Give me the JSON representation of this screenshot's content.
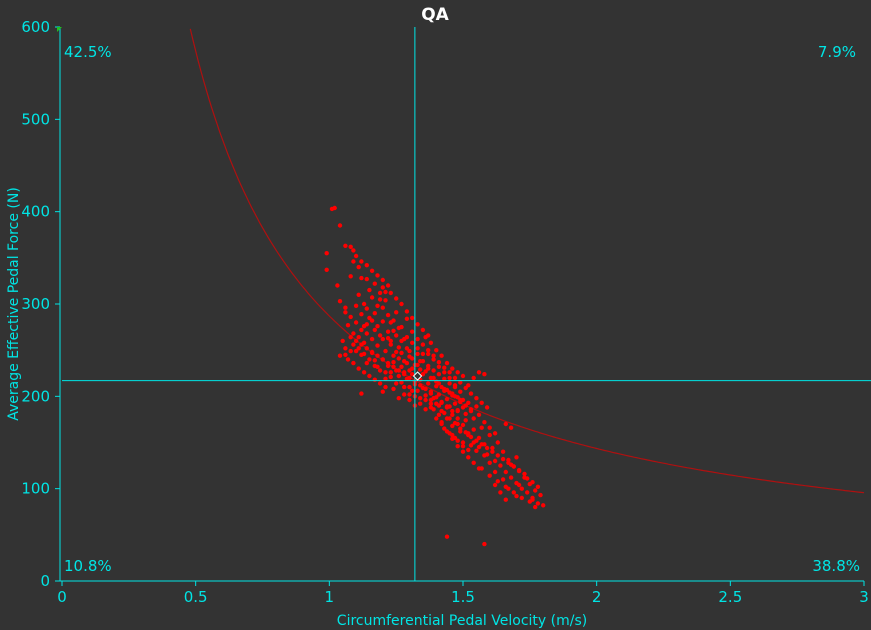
{
  "chart_data": {
    "type": "scatter",
    "title": "QA",
    "xlabel": "Circumferential Pedal Velocity (m/s)",
    "ylabel": "Average Effective Pedal Force (N)",
    "xlim": [
      0,
      3
    ],
    "ylim": [
      0,
      600
    ],
    "x_ticks": [
      "0",
      "0.5",
      "1",
      "1.5",
      "2",
      "2.5",
      "3"
    ],
    "y_ticks": [
      "0",
      "100",
      "200",
      "300",
      "400",
      "500",
      "600"
    ],
    "grid": false,
    "crosshair": {
      "x": 1.32,
      "y": 217
    },
    "mean_marker": {
      "x": 1.33,
      "y": 222
    },
    "curve": {
      "type": "constant-power",
      "power_watts": 287,
      "color": "#b01010"
    },
    "quadrant_percentages": {
      "top_left": "42.5%",
      "top_right": "7.9%",
      "bottom_left": "10.8%",
      "bottom_right": "38.8%"
    },
    "colors": {
      "points": "#ff0000",
      "axes": "#00e5e5",
      "background": "#333333",
      "title": "#ffffff"
    },
    "points": [
      [
        1.01,
        403
      ],
      [
        1.02,
        404
      ],
      [
        0.99,
        355
      ],
      [
        0.99,
        337
      ],
      [
        1.03,
        320
      ],
      [
        1.04,
        385
      ],
      [
        1.06,
        363
      ],
      [
        1.08,
        362
      ],
      [
        1.09,
        346
      ],
      [
        1.08,
        330
      ],
      [
        1.11,
        340
      ],
      [
        1.12,
        328
      ],
      [
        1.14,
        327
      ],
      [
        1.17,
        322
      ],
      [
        1.19,
        312
      ],
      [
        1.2,
        318
      ],
      [
        1.21,
        304
      ],
      [
        1.09,
        268
      ],
      [
        1.04,
        303
      ],
      [
        1.06,
        291
      ],
      [
        1.07,
        277
      ],
      [
        1.1,
        298
      ],
      [
        1.11,
        264
      ],
      [
        1.12,
        289
      ],
      [
        1.13,
        276
      ],
      [
        1.14,
        268
      ],
      [
        1.15,
        285
      ],
      [
        1.16,
        262
      ],
      [
        1.17,
        272
      ],
      [
        1.18,
        255
      ],
      [
        1.19,
        266
      ],
      [
        1.2,
        281
      ],
      [
        1.21,
        249
      ],
      [
        1.22,
        263
      ],
      [
        1.23,
        256
      ],
      [
        1.24,
        271
      ],
      [
        1.25,
        248
      ],
      [
        1.26,
        241
      ],
      [
        1.27,
        260
      ],
      [
        1.28,
        238
      ],
      [
        1.29,
        252
      ],
      [
        1.3,
        243
      ],
      [
        1.31,
        230
      ],
      [
        1.09,
        256
      ],
      [
        1.1,
        249
      ],
      [
        1.12,
        245
      ],
      [
        1.13,
        258
      ],
      [
        1.14,
        236
      ],
      [
        1.16,
        247
      ],
      [
        1.17,
        239
      ],
      [
        1.18,
        232
      ],
      [
        1.2,
        240
      ],
      [
        1.21,
        226
      ],
      [
        1.22,
        233
      ],
      [
        1.23,
        221
      ],
      [
        1.24,
        237
      ],
      [
        1.25,
        228
      ],
      [
        1.26,
        222
      ],
      [
        1.27,
        215
      ],
      [
        1.28,
        226
      ],
      [
        1.29,
        219
      ],
      [
        1.3,
        210
      ],
      [
        1.31,
        224
      ],
      [
        1.32,
        213
      ],
      [
        1.33,
        206
      ],
      [
        1.34,
        218
      ],
      [
        1.35,
        209
      ],
      [
        1.36,
        201
      ],
      [
        1.37,
        214
      ],
      [
        1.38,
        205
      ],
      [
        1.39,
        198
      ],
      [
        1.4,
        211
      ],
      [
        1.41,
        202
      ],
      [
        1.42,
        193
      ],
      [
        1.43,
        206
      ],
      [
        1.44,
        197
      ],
      [
        1.45,
        189
      ],
      [
        1.46,
        201
      ],
      [
        1.47,
        192
      ],
      [
        1.48,
        185
      ],
      [
        1.49,
        196
      ],
      [
        1.5,
        188
      ],
      [
        1.51,
        181
      ],
      [
        1.52,
        193
      ],
      [
        1.53,
        184
      ],
      [
        1.54,
        176
      ],
      [
        1.55,
        189
      ],
      [
        1.56,
        180
      ],
      [
        1.23,
        260
      ],
      [
        1.24,
        244
      ],
      [
        1.25,
        266
      ],
      [
        1.26,
        253
      ],
      [
        1.27,
        247
      ],
      [
        1.28,
        262
      ],
      [
        1.29,
        236
      ],
      [
        1.3,
        249
      ],
      [
        1.31,
        241
      ],
      [
        1.32,
        234
      ],
      [
        1.33,
        246
      ],
      [
        1.34,
        229
      ],
      [
        1.35,
        238
      ],
      [
        1.36,
        227
      ],
      [
        1.37,
        233
      ],
      [
        1.38,
        220
      ],
      [
        1.39,
        228
      ],
      [
        1.4,
        216
      ],
      [
        1.41,
        224
      ],
      [
        1.42,
        210
      ],
      [
        1.43,
        219
      ],
      [
        1.44,
        207
      ],
      [
        1.45,
        214
      ],
      [
        1.46,
        203
      ],
      [
        1.47,
        210
      ],
      [
        1.48,
        199
      ],
      [
        1.49,
        205
      ],
      [
        1.5,
        196
      ],
      [
        1.2,
        296
      ],
      [
        1.22,
        288
      ],
      [
        1.19,
        305
      ],
      [
        1.21,
        313
      ],
      [
        1.18,
        298
      ],
      [
        1.16,
        307
      ],
      [
        1.15,
        315
      ],
      [
        1.13,
        300
      ],
      [
        1.11,
        310
      ],
      [
        1.14,
        295
      ],
      [
        1.17,
        290
      ],
      [
        1.23,
        280
      ],
      [
        1.25,
        291
      ],
      [
        1.27,
        275
      ],
      [
        1.29,
        284
      ],
      [
        1.31,
        270
      ],
      [
        1.33,
        262
      ],
      [
        1.35,
        256
      ],
      [
        1.37,
        250
      ],
      [
        1.39,
        244
      ],
      [
        1.41,
        237
      ],
      [
        1.43,
        231
      ],
      [
        1.45,
        226
      ],
      [
        1.47,
        220
      ],
      [
        1.49,
        215
      ],
      [
        1.51,
        209
      ],
      [
        1.53,
        203
      ],
      [
        1.55,
        198
      ],
      [
        1.57,
        193
      ],
      [
        1.59,
        188
      ],
      [
        1.41,
        180
      ],
      [
        1.42,
        172
      ],
      [
        1.43,
        165
      ],
      [
        1.44,
        176
      ],
      [
        1.45,
        160
      ],
      [
        1.46,
        168
      ],
      [
        1.47,
        155
      ],
      [
        1.48,
        170
      ],
      [
        1.49,
        162
      ],
      [
        1.5,
        150
      ],
      [
        1.51,
        174
      ],
      [
        1.52,
        158
      ],
      [
        1.53,
        147
      ],
      [
        1.54,
        164
      ],
      [
        1.55,
        141
      ],
      [
        1.56,
        155
      ],
      [
        1.57,
        166
      ],
      [
        1.58,
        148
      ],
      [
        1.59,
        137
      ],
      [
        1.6,
        158
      ],
      [
        1.61,
        144
      ],
      [
        1.62,
        130
      ],
      [
        1.63,
        150
      ],
      [
        1.64,
        125
      ],
      [
        1.65,
        140
      ],
      [
        1.66,
        118
      ],
      [
        1.67,
        131
      ],
      [
        1.68,
        112
      ],
      [
        1.69,
        124
      ],
      [
        1.7,
        106
      ],
      [
        1.71,
        119
      ],
      [
        1.72,
        100
      ],
      [
        1.73,
        112
      ],
      [
        1.74,
        96
      ],
      [
        1.75,
        105
      ],
      [
        1.76,
        90
      ],
      [
        1.77,
        98
      ],
      [
        1.78,
        84
      ],
      [
        1.79,
        93
      ],
      [
        1.77,
        80
      ],
      [
        1.76,
        88
      ],
      [
        1.7,
        92
      ],
      [
        1.67,
        100
      ],
      [
        1.65,
        110
      ],
      [
        1.62,
        118
      ],
      [
        1.6,
        128
      ],
      [
        1.58,
        136
      ],
      [
        1.56,
        145
      ],
      [
        1.54,
        150
      ],
      [
        1.52,
        160
      ],
      [
        1.5,
        169
      ],
      [
        1.48,
        176
      ],
      [
        1.46,
        184
      ],
      [
        1.44,
        189
      ],
      [
        1.42,
        194
      ],
      [
        1.4,
        199
      ],
      [
        1.38,
        203
      ],
      [
        1.36,
        208
      ],
      [
        1.34,
        212
      ],
      [
        1.32,
        216
      ],
      [
        1.3,
        220
      ],
      [
        1.28,
        224
      ],
      [
        1.26,
        228
      ],
      [
        1.24,
        232
      ],
      [
        1.22,
        236
      ],
      [
        1.2,
        240
      ],
      [
        1.18,
        244
      ],
      [
        1.16,
        248
      ],
      [
        1.14,
        252
      ],
      [
        1.12,
        256
      ],
      [
        1.1,
        260
      ],
      [
        1.08,
        264
      ],
      [
        1.06,
        252
      ],
      [
        1.05,
        260
      ],
      [
        1.04,
        244
      ],
      [
        1.07,
        240
      ],
      [
        1.09,
        236
      ],
      [
        1.11,
        230
      ],
      [
        1.13,
        226
      ],
      [
        1.15,
        222
      ],
      [
        1.17,
        218
      ],
      [
        1.19,
        214
      ],
      [
        1.21,
        210
      ],
      [
        1.12,
        203
      ],
      [
        1.2,
        205
      ],
      [
        1.24,
        208
      ],
      [
        1.26,
        198
      ],
      [
        1.28,
        202
      ],
      [
        1.3,
        196
      ],
      [
        1.32,
        200
      ],
      [
        1.34,
        192
      ],
      [
        1.36,
        196
      ],
      [
        1.38,
        188
      ],
      [
        1.4,
        192
      ],
      [
        1.42,
        184
      ],
      [
        1.44,
        188
      ],
      [
        1.46,
        180
      ],
      [
        1.48,
        184
      ],
      [
        1.52,
        212
      ],
      [
        1.54,
        220
      ],
      [
        1.56,
        226
      ],
      [
        1.58,
        224
      ],
      [
        1.38,
        258
      ],
      [
        1.36,
        264
      ],
      [
        1.4,
        250
      ],
      [
        1.42,
        244
      ],
      [
        1.44,
        236
      ],
      [
        1.46,
        230
      ],
      [
        1.48,
        226
      ],
      [
        1.5,
        222
      ],
      [
        1.35,
        272
      ],
      [
        1.37,
        266
      ],
      [
        1.33,
        278
      ],
      [
        1.31,
        285
      ],
      [
        1.29,
        292
      ],
      [
        1.27,
        300
      ],
      [
        1.25,
        306
      ],
      [
        1.23,
        312
      ],
      [
        1.22,
        320
      ],
      [
        1.2,
        326
      ],
      [
        1.18,
        331
      ],
      [
        1.16,
        336
      ],
      [
        1.14,
        342
      ],
      [
        1.12,
        346
      ],
      [
        1.1,
        352
      ],
      [
        1.09,
        358
      ],
      [
        1.46,
        154
      ],
      [
        1.48,
        146
      ],
      [
        1.5,
        140
      ],
      [
        1.52,
        134
      ],
      [
        1.54,
        128
      ],
      [
        1.57,
        122
      ],
      [
        1.6,
        114
      ],
      [
        1.63,
        108
      ],
      [
        1.66,
        102
      ],
      [
        1.69,
        96
      ],
      [
        1.72,
        90
      ],
      [
        1.75,
        86
      ],
      [
        1.38,
        196
      ],
      [
        1.39,
        186
      ],
      [
        1.41,
        190
      ],
      [
        1.43,
        182
      ],
      [
        1.45,
        176
      ],
      [
        1.47,
        171
      ],
      [
        1.49,
        165
      ],
      [
        1.51,
        161
      ],
      [
        1.53,
        156
      ],
      [
        1.55,
        152
      ],
      [
        1.57,
        148
      ],
      [
        1.59,
        144
      ],
      [
        1.61,
        140
      ],
      [
        1.63,
        136
      ],
      [
        1.65,
        132
      ],
      [
        1.67,
        128
      ],
      [
        1.69,
        124
      ],
      [
        1.71,
        120
      ],
      [
        1.74,
        111
      ],
      [
        1.76,
        107
      ],
      [
        1.78,
        102
      ],
      [
        1.8,
        82
      ],
      [
        1.6,
        166
      ],
      [
        1.62,
        160
      ],
      [
        1.58,
        172
      ],
      [
        1.34,
        238
      ],
      [
        1.35,
        224
      ],
      [
        1.37,
        230
      ],
      [
        1.39,
        220
      ],
      [
        1.41,
        214
      ],
      [
        1.43,
        208
      ],
      [
        1.45,
        204
      ],
      [
        1.47,
        200
      ],
      [
        1.49,
        194
      ],
      [
        1.51,
        190
      ],
      [
        1.53,
        186
      ],
      [
        1.27,
        232
      ],
      [
        1.28,
        210
      ],
      [
        1.3,
        228
      ],
      [
        1.31,
        206
      ],
      [
        1.33,
        234
      ],
      [
        1.25,
        214
      ],
      [
        1.23,
        226
      ],
      [
        1.21,
        219
      ],
      [
        1.19,
        228
      ],
      [
        1.17,
        233
      ],
      [
        1.15,
        240
      ],
      [
        1.13,
        246
      ],
      [
        1.11,
        252
      ],
      [
        1.08,
        249
      ],
      [
        1.06,
        245
      ],
      [
        1.37,
        246
      ],
      [
        1.39,
        240
      ],
      [
        1.41,
        232
      ],
      [
        1.43,
        226
      ],
      [
        1.45,
        220
      ],
      [
        1.47,
        212
      ],
      [
        1.29,
        264
      ],
      [
        1.31,
        258
      ],
      [
        1.33,
        252
      ],
      [
        1.35,
        246
      ],
      [
        1.26,
        274
      ],
      [
        1.24,
        282
      ],
      [
        1.22,
        270
      ],
      [
        1.2,
        262
      ],
      [
        1.18,
        276
      ],
      [
        1.16,
        282
      ],
      [
        1.14,
        278
      ],
      [
        1.12,
        272
      ],
      [
        1.1,
        280
      ],
      [
        1.08,
        286
      ],
      [
        1.06,
        296
      ],
      [
        1.3,
        202
      ],
      [
        1.32,
        190
      ],
      [
        1.34,
        198
      ],
      [
        1.36,
        186
      ],
      [
        1.38,
        192
      ],
      [
        1.4,
        176
      ],
      [
        1.42,
        170
      ],
      [
        1.44,
        162
      ],
      [
        1.46,
        158
      ],
      [
        1.48,
        152
      ],
      [
        1.5,
        146
      ],
      [
        1.52,
        142
      ],
      [
        1.44,
        48
      ],
      [
        1.58,
        40
      ],
      [
        1.66,
        170
      ],
      [
        1.68,
        166
      ],
      [
        1.56,
        122
      ],
      [
        1.62,
        104
      ],
      [
        1.64,
        96
      ],
      [
        1.66,
        88
      ],
      [
        1.71,
        104
      ],
      [
        1.73,
        116
      ],
      [
        1.68,
        126
      ],
      [
        1.7,
        134
      ]
    ]
  }
}
